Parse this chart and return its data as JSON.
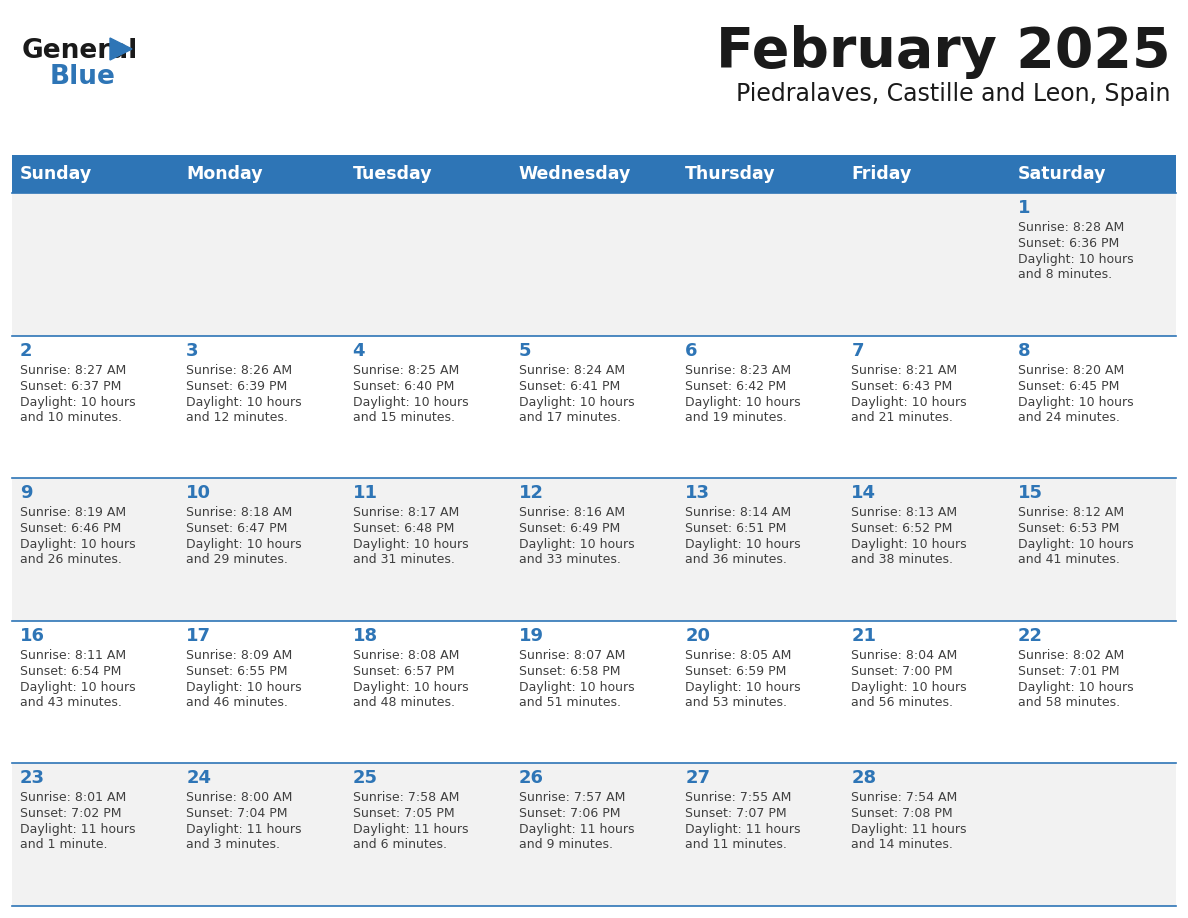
{
  "title": "February 2025",
  "subtitle": "Piedralaves, Castille and Leon, Spain",
  "header_color": "#2E75B6",
  "header_text_color": "#FFFFFF",
  "cell_bg_odd": "#F2F2F2",
  "cell_bg_even": "#FFFFFF",
  "border_color": "#2E75B6",
  "day_num_color": "#2E75B6",
  "text_color": "#404040",
  "days_of_week": [
    "Sunday",
    "Monday",
    "Tuesday",
    "Wednesday",
    "Thursday",
    "Friday",
    "Saturday"
  ],
  "weeks": [
    [
      {
        "day": null,
        "sunrise": null,
        "sunset": null,
        "daylight": null
      },
      {
        "day": null,
        "sunrise": null,
        "sunset": null,
        "daylight": null
      },
      {
        "day": null,
        "sunrise": null,
        "sunset": null,
        "daylight": null
      },
      {
        "day": null,
        "sunrise": null,
        "sunset": null,
        "daylight": null
      },
      {
        "day": null,
        "sunrise": null,
        "sunset": null,
        "daylight": null
      },
      {
        "day": null,
        "sunrise": null,
        "sunset": null,
        "daylight": null
      },
      {
        "day": 1,
        "sunrise": "8:28 AM",
        "sunset": "6:36 PM",
        "daylight": "10 hours\nand 8 minutes."
      }
    ],
    [
      {
        "day": 2,
        "sunrise": "8:27 AM",
        "sunset": "6:37 PM",
        "daylight": "10 hours\nand 10 minutes."
      },
      {
        "day": 3,
        "sunrise": "8:26 AM",
        "sunset": "6:39 PM",
        "daylight": "10 hours\nand 12 minutes."
      },
      {
        "day": 4,
        "sunrise": "8:25 AM",
        "sunset": "6:40 PM",
        "daylight": "10 hours\nand 15 minutes."
      },
      {
        "day": 5,
        "sunrise": "8:24 AM",
        "sunset": "6:41 PM",
        "daylight": "10 hours\nand 17 minutes."
      },
      {
        "day": 6,
        "sunrise": "8:23 AM",
        "sunset": "6:42 PM",
        "daylight": "10 hours\nand 19 minutes."
      },
      {
        "day": 7,
        "sunrise": "8:21 AM",
        "sunset": "6:43 PM",
        "daylight": "10 hours\nand 21 minutes."
      },
      {
        "day": 8,
        "sunrise": "8:20 AM",
        "sunset": "6:45 PM",
        "daylight": "10 hours\nand 24 minutes."
      }
    ],
    [
      {
        "day": 9,
        "sunrise": "8:19 AM",
        "sunset": "6:46 PM",
        "daylight": "10 hours\nand 26 minutes."
      },
      {
        "day": 10,
        "sunrise": "8:18 AM",
        "sunset": "6:47 PM",
        "daylight": "10 hours\nand 29 minutes."
      },
      {
        "day": 11,
        "sunrise": "8:17 AM",
        "sunset": "6:48 PM",
        "daylight": "10 hours\nand 31 minutes."
      },
      {
        "day": 12,
        "sunrise": "8:16 AM",
        "sunset": "6:49 PM",
        "daylight": "10 hours\nand 33 minutes."
      },
      {
        "day": 13,
        "sunrise": "8:14 AM",
        "sunset": "6:51 PM",
        "daylight": "10 hours\nand 36 minutes."
      },
      {
        "day": 14,
        "sunrise": "8:13 AM",
        "sunset": "6:52 PM",
        "daylight": "10 hours\nand 38 minutes."
      },
      {
        "day": 15,
        "sunrise": "8:12 AM",
        "sunset": "6:53 PM",
        "daylight": "10 hours\nand 41 minutes."
      }
    ],
    [
      {
        "day": 16,
        "sunrise": "8:11 AM",
        "sunset": "6:54 PM",
        "daylight": "10 hours\nand 43 minutes."
      },
      {
        "day": 17,
        "sunrise": "8:09 AM",
        "sunset": "6:55 PM",
        "daylight": "10 hours\nand 46 minutes."
      },
      {
        "day": 18,
        "sunrise": "8:08 AM",
        "sunset": "6:57 PM",
        "daylight": "10 hours\nand 48 minutes."
      },
      {
        "day": 19,
        "sunrise": "8:07 AM",
        "sunset": "6:58 PM",
        "daylight": "10 hours\nand 51 minutes."
      },
      {
        "day": 20,
        "sunrise": "8:05 AM",
        "sunset": "6:59 PM",
        "daylight": "10 hours\nand 53 minutes."
      },
      {
        "day": 21,
        "sunrise": "8:04 AM",
        "sunset": "7:00 PM",
        "daylight": "10 hours\nand 56 minutes."
      },
      {
        "day": 22,
        "sunrise": "8:02 AM",
        "sunset": "7:01 PM",
        "daylight": "10 hours\nand 58 minutes."
      }
    ],
    [
      {
        "day": 23,
        "sunrise": "8:01 AM",
        "sunset": "7:02 PM",
        "daylight": "11 hours\nand 1 minute."
      },
      {
        "day": 24,
        "sunrise": "8:00 AM",
        "sunset": "7:04 PM",
        "daylight": "11 hours\nand 3 minutes."
      },
      {
        "day": 25,
        "sunrise": "7:58 AM",
        "sunset": "7:05 PM",
        "daylight": "11 hours\nand 6 minutes."
      },
      {
        "day": 26,
        "sunrise": "7:57 AM",
        "sunset": "7:06 PM",
        "daylight": "11 hours\nand 9 minutes."
      },
      {
        "day": 27,
        "sunrise": "7:55 AM",
        "sunset": "7:07 PM",
        "daylight": "11 hours\nand 11 minutes."
      },
      {
        "day": 28,
        "sunrise": "7:54 AM",
        "sunset": "7:08 PM",
        "daylight": "11 hours\nand 14 minutes."
      },
      {
        "day": null,
        "sunrise": null,
        "sunset": null,
        "daylight": null
      }
    ]
  ],
  "logo_general_color": "#1a1a1a",
  "logo_blue_color": "#2E75B6",
  "figsize": [
    11.88,
    9.18
  ],
  "dpi": 100
}
